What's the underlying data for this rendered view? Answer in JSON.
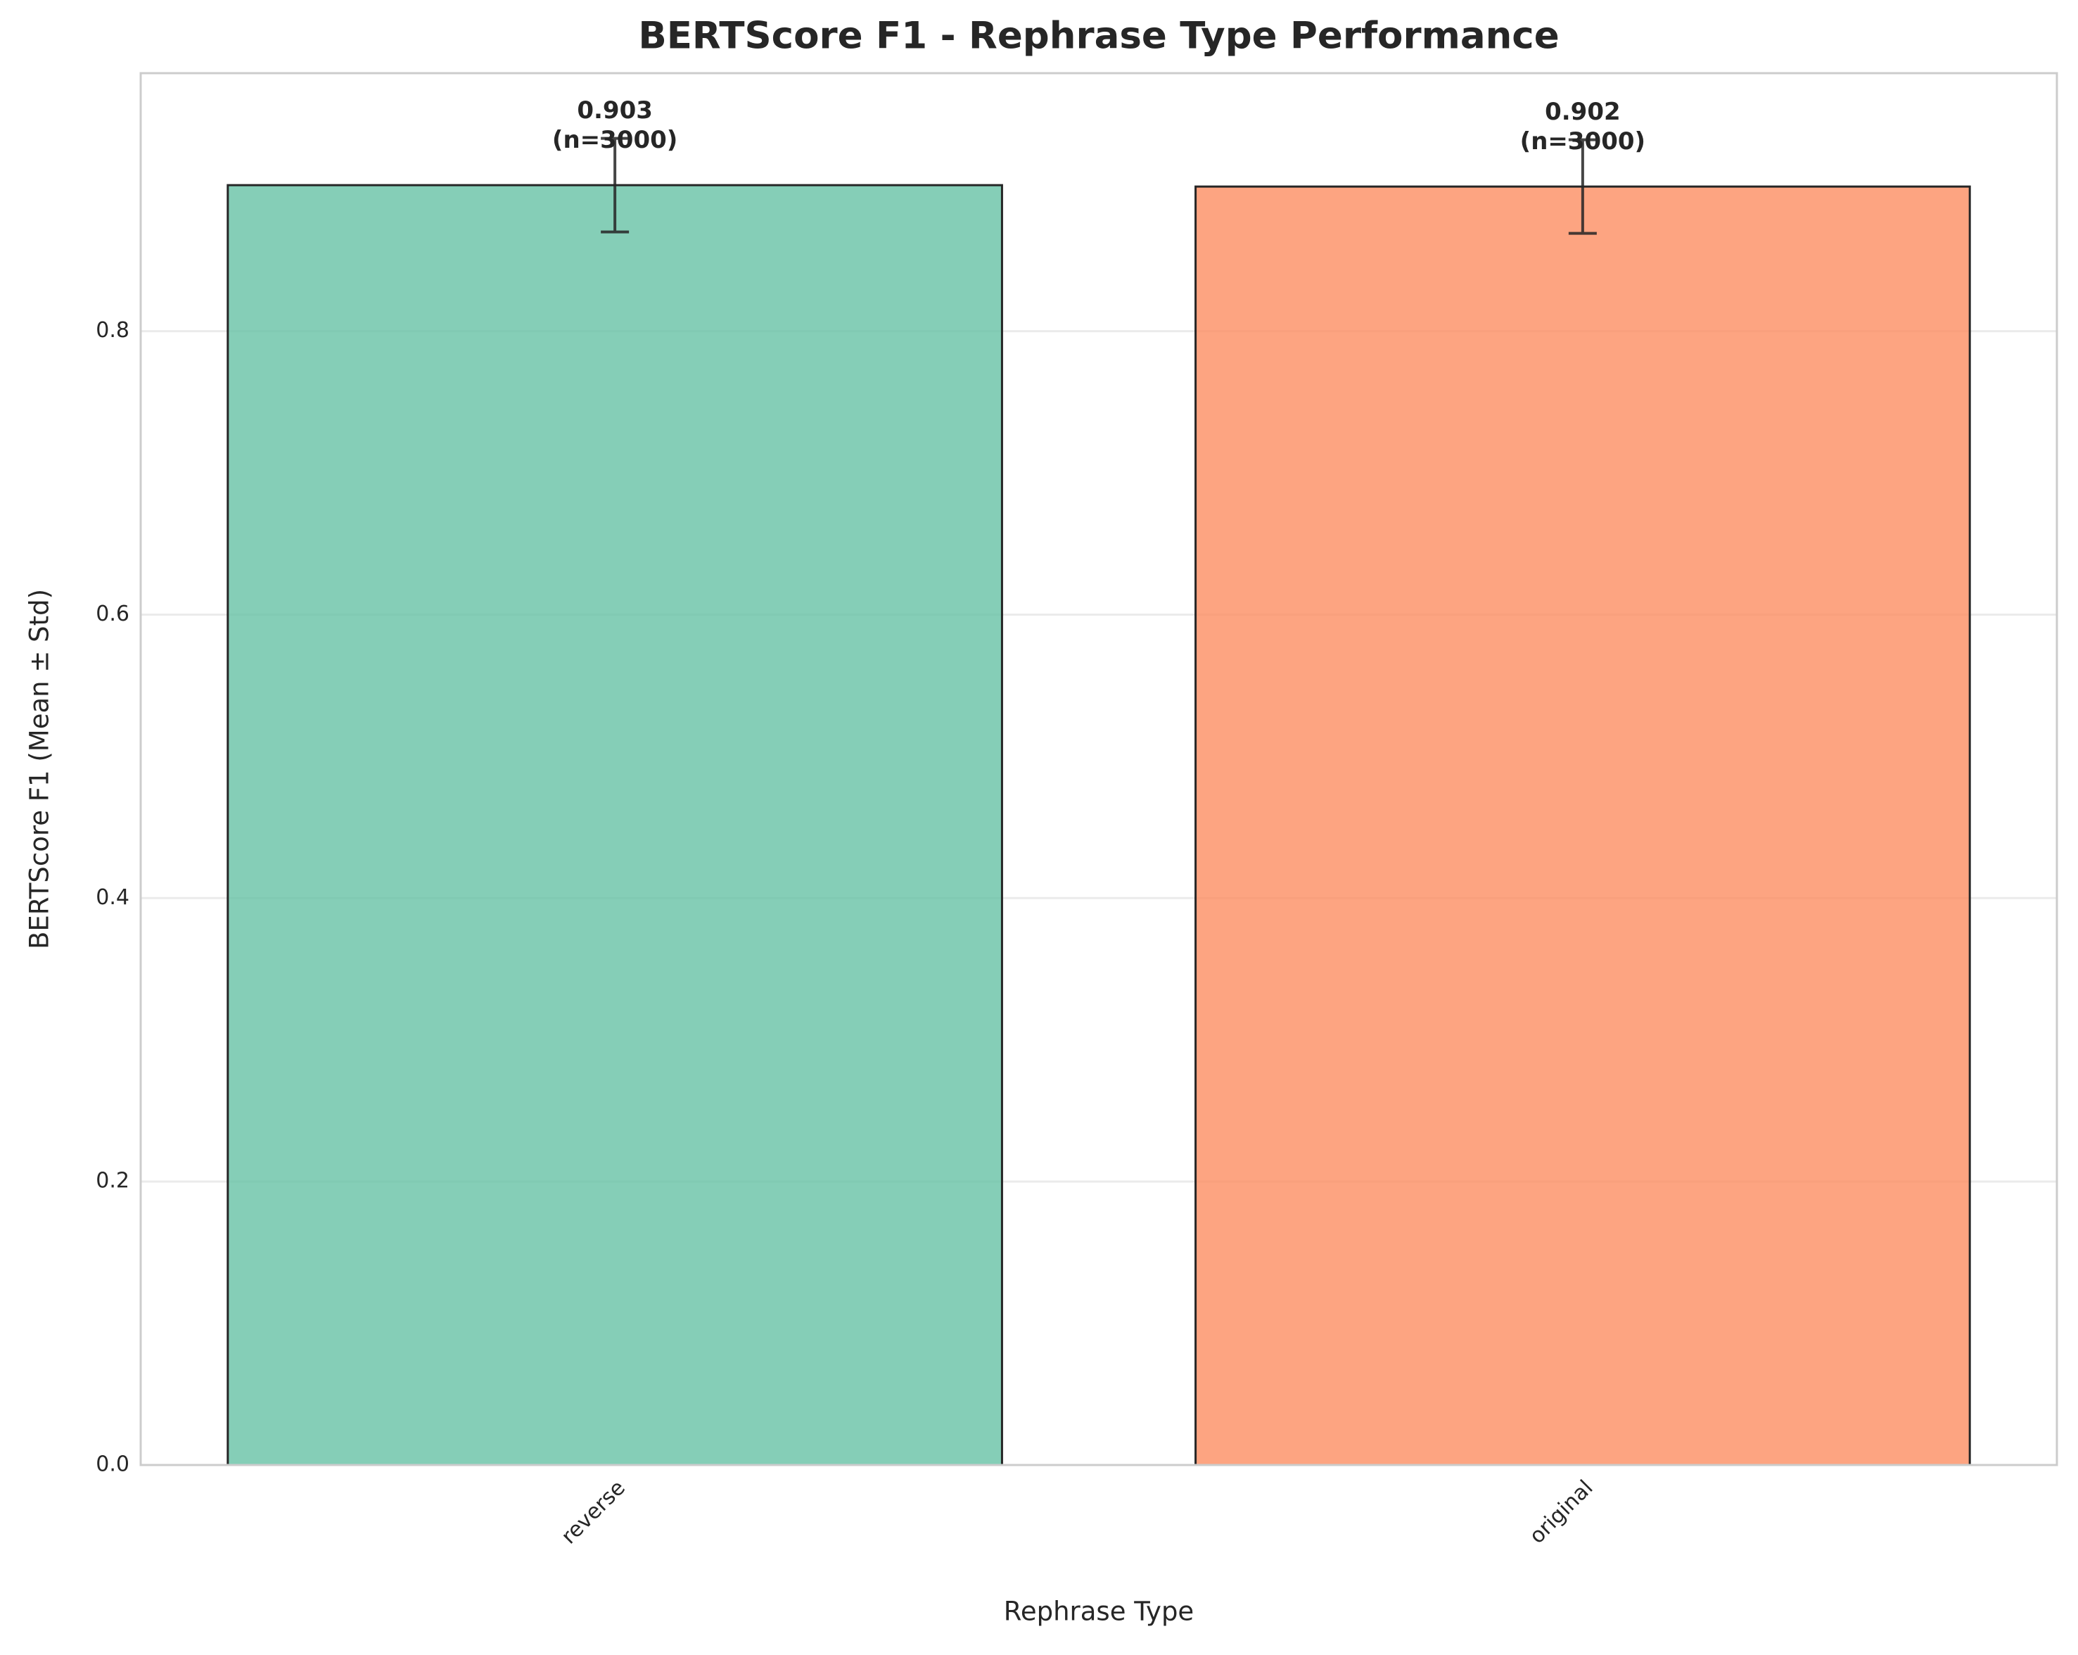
{
  "chart_data": {
    "type": "bar",
    "title": "BERTScore F1 - Rephrase Type Performance",
    "x_label": "Rephrase Type",
    "y_label": "BERTScore F1 (Mean ± Std)",
    "categories": [
      "reverse",
      "original"
    ],
    "values": [
      0.903,
      0.902
    ],
    "value_labels": [
      "0.903",
      "0.902"
    ],
    "sample_labels": [
      "(n=3000)",
      "(n=3000)"
    ],
    "errors": [
      0.033,
      0.033
    ],
    "colors": [
      "#66c2a5",
      "#fc8d62"
    ],
    "ylim": [
      0,
      0.982
    ],
    "yticks": [
      {
        "value": 0,
        "label": "0.0"
      },
      0.2,
      0.4,
      0.6,
      0.8
    ],
    "grid": true
  }
}
